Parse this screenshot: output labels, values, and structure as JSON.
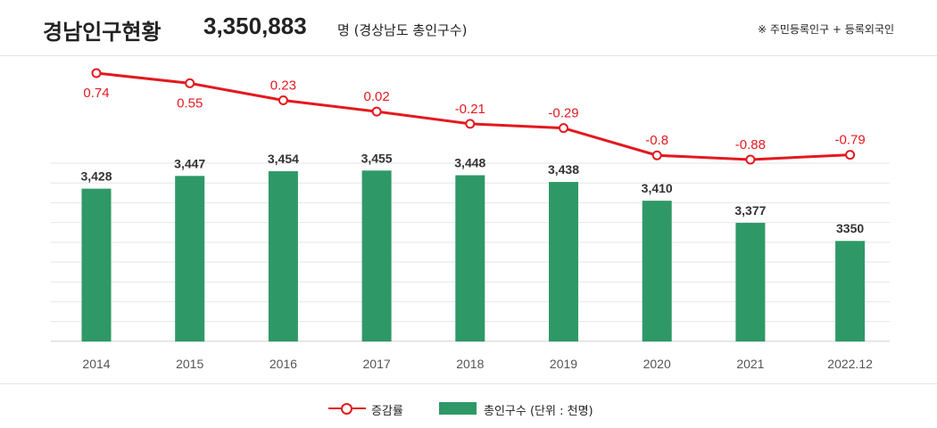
{
  "header": {
    "title": "경남인구현황",
    "total": "3,350,883",
    "total_unit": "명 (경상남도 총인구수)",
    "note": "※ 주민등록인구 + 등록외국인"
  },
  "legend": {
    "line_label": "증감률",
    "bar_label": "총인구수  (단위 : 천명)"
  },
  "colors": {
    "bar": "#2e9966",
    "line": "#e3191f",
    "bar_label": "#333333",
    "grid": "#e6e6e6"
  },
  "chart_data": {
    "type": "bar+line",
    "categories": [
      "2014",
      "2015",
      "2016",
      "2017",
      "2018",
      "2019",
      "2020",
      "2021",
      "2022.12"
    ],
    "series": [
      {
        "name": "총인구수",
        "type": "bar",
        "values": [
          3428,
          3447,
          3454,
          3455,
          3448,
          3438,
          3410,
          3377,
          3350
        ],
        "labels": [
          "3,428",
          "3,447",
          "3,454",
          "3,455",
          "3,448",
          "3,438",
          "3,410",
          "3,377",
          "3350"
        ]
      },
      {
        "name": "증감률",
        "type": "line",
        "values": [
          0.74,
          0.55,
          0.23,
          0.02,
          -0.21,
          -0.29,
          -0.8,
          -0.88,
          -0.79
        ],
        "labels": [
          "0.74",
          "0.55",
          "0.23",
          "0.02",
          "-0.21",
          "-0.29",
          "-0.8",
          "-0.88",
          "-0.79"
        ]
      }
    ],
    "grid": true,
    "legend_position": "bottom"
  }
}
